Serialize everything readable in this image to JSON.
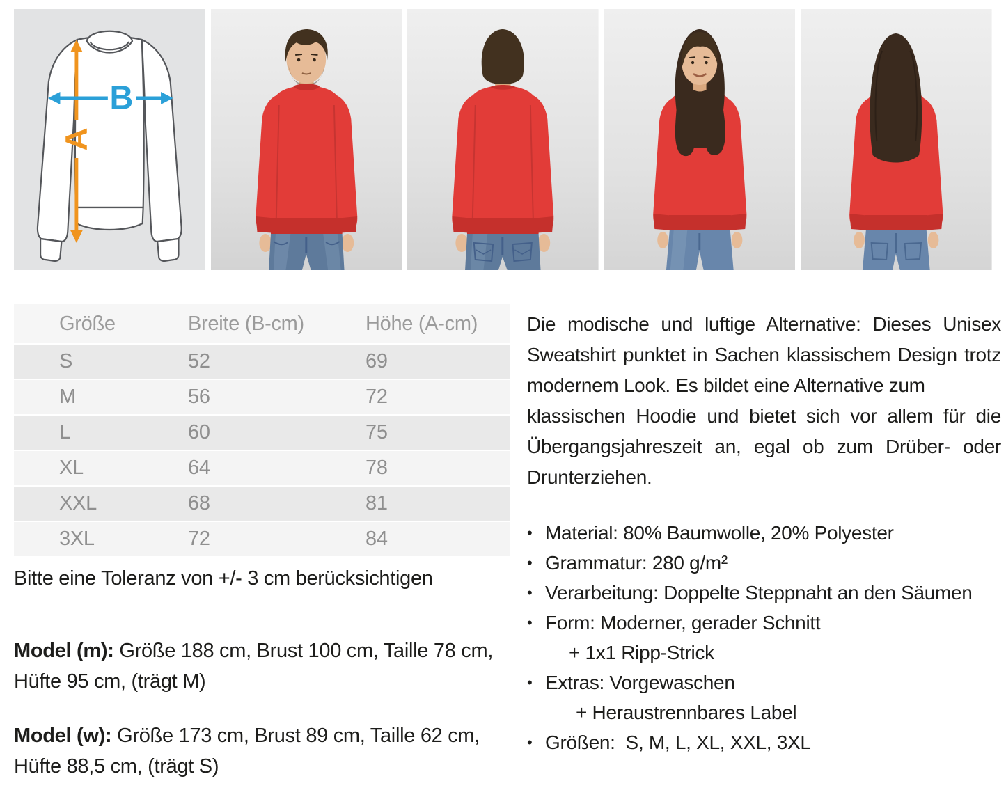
{
  "panels": [
    "sweatshirt-measurement-diagram",
    "male-model-front",
    "male-model-back",
    "female-model-front",
    "female-model-back"
  ],
  "diagram": {
    "label_a": "A",
    "label_b": "B"
  },
  "table": {
    "headers": [
      "Größe",
      "Breite (B-cm)",
      "Höhe (A-cm)"
    ],
    "rows": [
      [
        "S",
        "52",
        "69"
      ],
      [
        "M",
        "56",
        "72"
      ],
      [
        "L",
        "60",
        "75"
      ],
      [
        "XL",
        "64",
        "78"
      ],
      [
        "XXL",
        "68",
        "81"
      ],
      [
        "3XL",
        "72",
        "84"
      ]
    ]
  },
  "tolerance_note": "Bitte eine Toleranz von +/- 3 cm berücksichtigen",
  "models": [
    {
      "label": "Model (m):",
      "line1": " Größe 188 cm, Brust 100 cm, Taille 78 cm,",
      "line2": "Hüfte 95 cm, (trägt M)"
    },
    {
      "label": "Model (w):",
      "line1": " Größe 173 cm, Brust 89 cm, Taille 62 cm,",
      "line2": "Hüfte 88,5 cm, (trägt S)"
    }
  ],
  "description": {
    "lines": [
      {
        "text": "Die modische und luftige Alternative: Dieses Unisex",
        "justify": true
      },
      {
        "text": "Sweatshirt punktet in Sachen klassischem Design trotz",
        "justify": true
      },
      {
        "text": "modernem Look. Es bildet eine Alternative zum",
        "justify": false
      },
      {
        "text": "klassischen Hoodie und bietet sich vor allem für die",
        "justify": true
      },
      {
        "text": "Übergangsjahreszeit an, egal ob zum Drüber- oder",
        "justify": true
      },
      {
        "text": "Drunterziehen.",
        "justify": false
      }
    ]
  },
  "features": [
    {
      "bullet": "•",
      "text": "Material: 80% Baumwolle, 20% Polyester"
    },
    {
      "bullet": "•",
      "text": "Grammatur: 280 g/m²"
    },
    {
      "bullet": "•",
      "text": "Verarbeitung: Doppelte Steppnaht an den Säumen"
    },
    {
      "bullet": "•",
      "text": "Form: Moderner, gerader Schnitt"
    },
    {
      "bullet": "",
      "text": "+ 1x1 Ripp-Strick",
      "indent": 1
    },
    {
      "bullet": "•",
      "text": "Extras: Vorgewaschen"
    },
    {
      "bullet": "",
      "text": "+ Heraustrennbares Label",
      "indent": 2
    },
    {
      "bullet": "•",
      "text": "Größen:  S, M, L, XL, XXL, 3XL"
    }
  ],
  "colors": {
    "text": "#1d1d1b",
    "table_header_bg": "#f6f6f6",
    "table_header_text": "#9b9b9b",
    "table_row_dark": "#e9e9e9",
    "table_row_light": "#f4f4f4",
    "table_text": "#8f8f8f",
    "diagram_bg": "#e2e3e4",
    "outline": "#54565a",
    "orange": "#f0941e",
    "blue": "#2ba0d8",
    "red": "#e23c38",
    "red_dark": "#c5302c",
    "denim": "#5e7a9b",
    "denim_dark": "#44608a",
    "denim_light": "#8aa4c0",
    "skin": "#e6bb97",
    "skin_shadow": "#d9a87f",
    "hair_brown": "#42311f",
    "hair_dark": "#3a2a1e"
  }
}
